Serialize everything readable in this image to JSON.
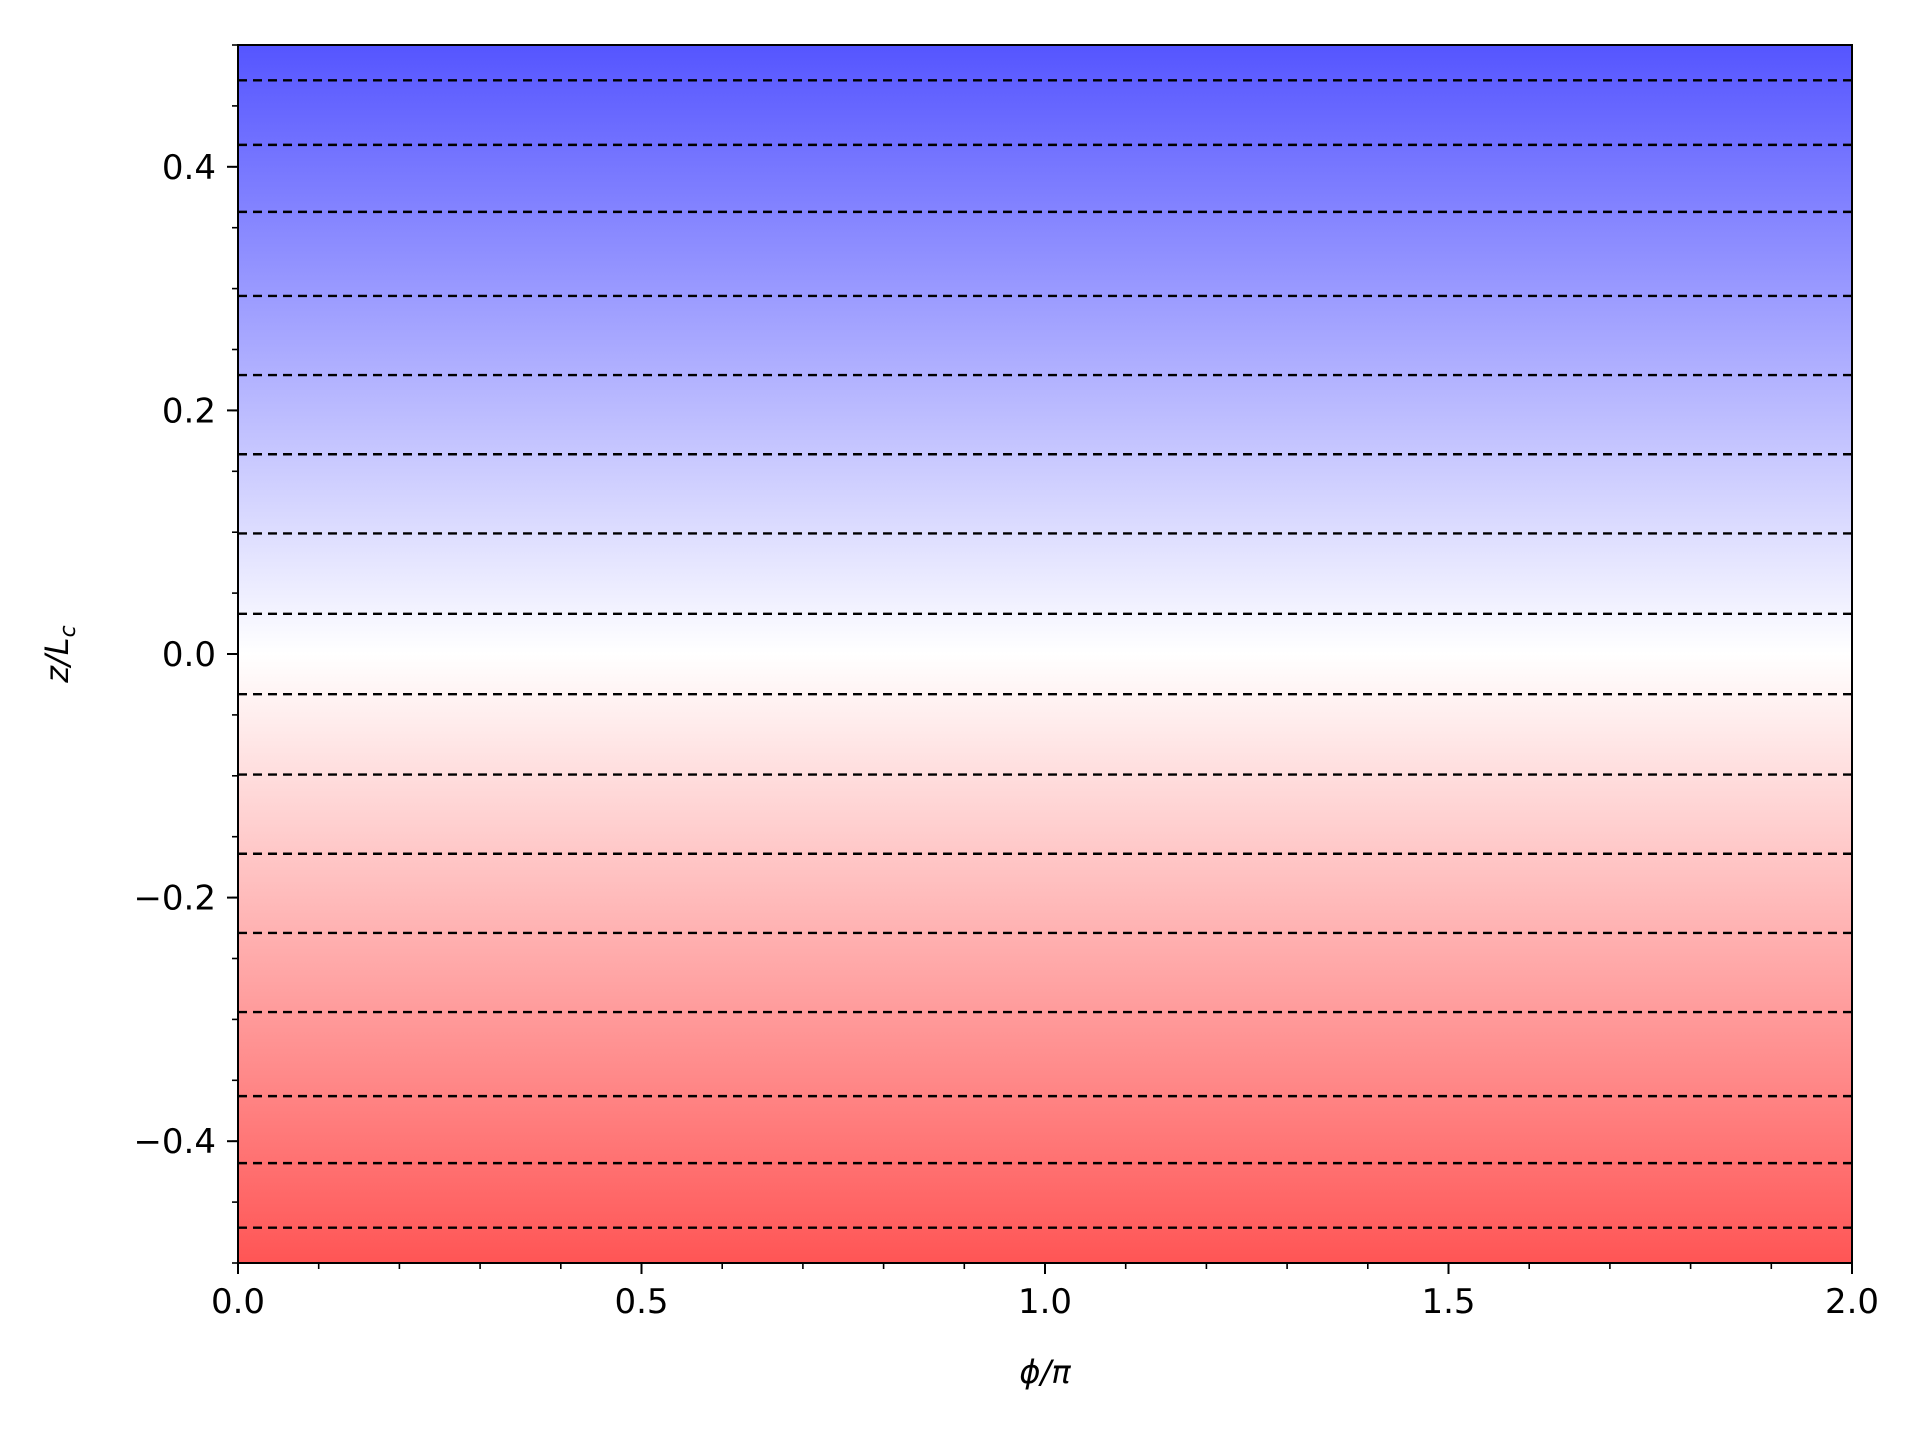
{
  "chart_data": {
    "type": "heatmap",
    "title": "",
    "xlabel": "ϕ/π",
    "ylabel": "z/L",
    "ylabel_subscript": "c",
    "xlim": [
      0.0,
      2.0
    ],
    "ylim": [
      -0.5,
      0.5
    ],
    "x_ticks": [
      0.0,
      0.5,
      1.0,
      1.5,
      2.0
    ],
    "x_tick_labels": [
      "0.0",
      "0.5",
      "1.0",
      "1.5",
      "2.0"
    ],
    "y_ticks": [
      -0.4,
      -0.2,
      0.0,
      0.2,
      0.4
    ],
    "y_tick_labels": [
      "−0.4",
      "−0.2",
      "0.0",
      "0.2",
      "0.4"
    ],
    "x_minor_step": 0.1,
    "y_minor_step": 0.05,
    "grid": false,
    "colormap": {
      "top_color": "#5555ff",
      "middle_color": "#ffffff",
      "bottom_color": "#ff5555",
      "description": "uniform along x, varies with z only"
    },
    "contour_levels_z": [
      0.471,
      0.418,
      0.363,
      0.294,
      0.229,
      0.164,
      0.099,
      0.033,
      -0.033,
      -0.099,
      -0.164,
      -0.229,
      -0.294,
      -0.363,
      -0.418,
      -0.471
    ],
    "contour_style": "dashed",
    "contour_color": "#000000"
  }
}
